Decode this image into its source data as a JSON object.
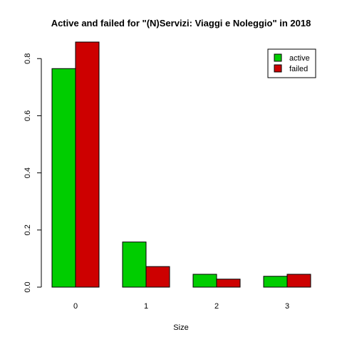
{
  "chart_data": {
    "type": "bar",
    "title": "Active and failed for \"(N)Servizi: Viaggi e Noleggio\" in 2018",
    "xlabel": "Size",
    "ylabel": "",
    "categories": [
      "0",
      "1",
      "2",
      "3"
    ],
    "series": [
      {
        "name": "active",
        "color": "#00cd00",
        "values": [
          0.765,
          0.158,
          0.045,
          0.038
        ]
      },
      {
        "name": "failed",
        "color": "#cd0000",
        "values": [
          0.858,
          0.072,
          0.028,
          0.045
        ]
      }
    ],
    "ylim": [
      0,
      0.858
    ],
    "yticks": [
      "0.0",
      "0.2",
      "0.4",
      "0.6",
      "0.8"
    ],
    "ytick_values": [
      0,
      0.2,
      0.4,
      0.6,
      0.8
    ],
    "grid": false,
    "legend_position": "top-right"
  }
}
